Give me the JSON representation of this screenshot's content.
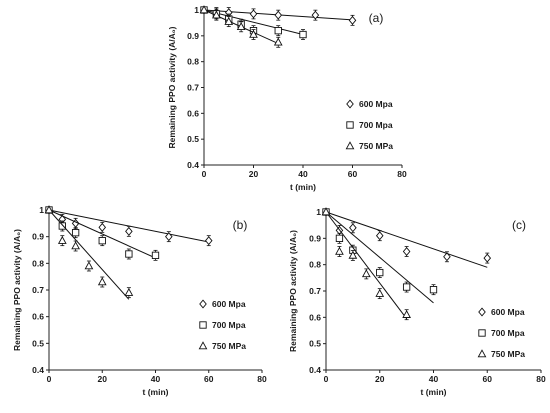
{
  "chart_data": [
    {
      "type": "scatter",
      "panel_label": "(a)",
      "xlabel": "t (min)",
      "ylabel": "Remaining PPO activity (A/A₀)",
      "xlim": [
        0,
        80
      ],
      "ylim": [
        0.4,
        1
      ],
      "x_ticks": [
        "0",
        "20",
        "40",
        "60",
        "80"
      ],
      "y_ticks": [
        "0.4",
        "0.5",
        "0.6",
        "0.7",
        "0.8",
        "0.9",
        "1"
      ],
      "grid": false,
      "legend_position": "right",
      "series": [
        {
          "name": "600 Mpa",
          "marker": "diamond",
          "x": [
            0,
            5,
            10,
            20,
            30,
            45,
            60
          ],
          "y": [
            1.0,
            0.99,
            0.99,
            0.985,
            0.98,
            0.98,
            0.96
          ],
          "fit": [
            [
              0,
              1.0
            ],
            [
              60,
              0.962
            ]
          ]
        },
        {
          "name": "700 Mpa",
          "marker": "square",
          "x": [
            0,
            5,
            10,
            15,
            20,
            30,
            40
          ],
          "y": [
            1.0,
            0.985,
            0.965,
            0.945,
            0.92,
            0.92,
            0.905
          ],
          "fit": [
            [
              0,
              1.0
            ],
            [
              40,
              0.905
            ]
          ]
        },
        {
          "name": "750 MPa",
          "marker": "triangle",
          "x": [
            0,
            5,
            10,
            15,
            20,
            30
          ],
          "y": [
            1.0,
            0.98,
            0.955,
            0.935,
            0.905,
            0.875
          ],
          "fit": [
            [
              0,
              1.0
            ],
            [
              30,
              0.87
            ]
          ]
        }
      ]
    },
    {
      "type": "scatter",
      "panel_label": "(b)",
      "xlabel": "t (min)",
      "ylabel": "Remaining PPO activity (A/A₀)",
      "xlim": [
        0,
        80
      ],
      "ylim": [
        0.4,
        1
      ],
      "x_ticks": [
        "0",
        "20",
        "40",
        "60",
        "80"
      ],
      "y_ticks": [
        "0.4",
        "0.5",
        "0.6",
        "0.7",
        "0.8",
        "0.9",
        "1"
      ],
      "grid": false,
      "legend_position": "right",
      "series": [
        {
          "name": "600 Mpa",
          "marker": "diamond",
          "x": [
            0,
            5,
            10,
            20,
            30,
            45,
            60
          ],
          "y": [
            1.0,
            0.965,
            0.95,
            0.935,
            0.92,
            0.9,
            0.885
          ],
          "fit": [
            [
              0,
              1.0
            ],
            [
              60,
              0.88
            ]
          ]
        },
        {
          "name": "700 Mpa",
          "marker": "square",
          "x": [
            0,
            5,
            10,
            20,
            30,
            40
          ],
          "y": [
            1.0,
            0.94,
            0.915,
            0.885,
            0.835,
            0.83
          ],
          "fit": [
            [
              0,
              1.0
            ],
            [
              40,
              0.82
            ]
          ]
        },
        {
          "name": "750 MPa",
          "marker": "triangle",
          "x": [
            0,
            5,
            10,
            15,
            20,
            30
          ],
          "y": [
            1.0,
            0.885,
            0.865,
            0.79,
            0.73,
            0.69
          ],
          "fit": [
            [
              0,
              1.0
            ],
            [
              30,
              0.665
            ]
          ]
        }
      ]
    },
    {
      "type": "scatter",
      "panel_label": "(c)",
      "xlabel": "t (min)",
      "ylabel": "Remaining PPO activity (A/A₀)",
      "xlim": [
        0,
        80
      ],
      "ylim": [
        0.4,
        1
      ],
      "x_ticks": [
        "0",
        "20",
        "40",
        "60",
        "80"
      ],
      "y_ticks": [
        "0.4",
        "0.5",
        "0.6",
        "0.7",
        "0.8",
        "0.9",
        "1"
      ],
      "grid": false,
      "legend_position": "right",
      "series": [
        {
          "name": "600 Mpa",
          "marker": "diamond",
          "x": [
            0,
            5,
            10,
            20,
            30,
            45,
            60
          ],
          "y": [
            1.0,
            0.93,
            0.94,
            0.91,
            0.85,
            0.83,
            0.825
          ],
          "fit": [
            [
              0,
              1.0
            ],
            [
              60,
              0.79
            ]
          ]
        },
        {
          "name": "700 Mpa",
          "marker": "square",
          "x": [
            0,
            5,
            10,
            20,
            30,
            40
          ],
          "y": [
            1.0,
            0.9,
            0.855,
            0.77,
            0.715,
            0.705
          ],
          "fit": [
            [
              0,
              1.0
            ],
            [
              40,
              0.655
            ]
          ]
        },
        {
          "name": "750 MPa",
          "marker": "triangle",
          "x": [
            0,
            5,
            10,
            15,
            20,
            30
          ],
          "y": [
            1.0,
            0.85,
            0.835,
            0.765,
            0.69,
            0.61
          ],
          "fit": [
            [
              0,
              1.0
            ],
            [
              30,
              0.595
            ]
          ]
        }
      ]
    }
  ]
}
